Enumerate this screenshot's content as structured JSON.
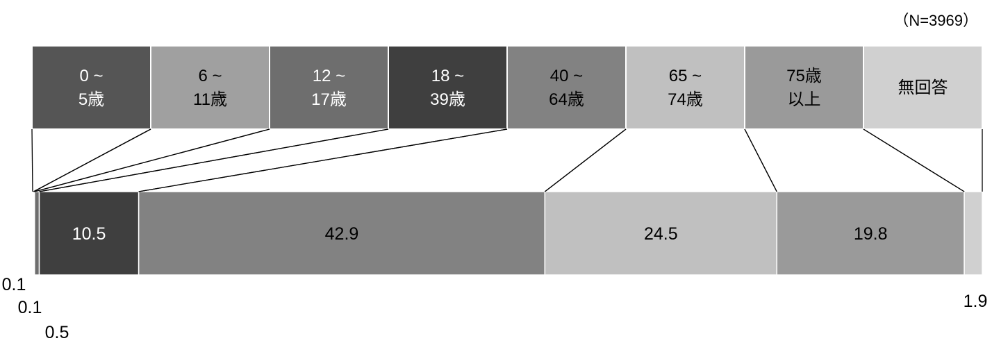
{
  "sample_size": "（N=3969）",
  "chart_data": {
    "type": "stacked-bar",
    "title": "",
    "categories": [
      {
        "lines": [
          "0 ~",
          "5歳"
        ],
        "color": "#555555",
        "text_color": "#ffffff"
      },
      {
        "lines": [
          "6 ~",
          "11歳"
        ],
        "color": "#a0a0a0",
        "text_color": "#000000"
      },
      {
        "lines": [
          "12 ~",
          "17歳"
        ],
        "color": "#6e6e6e",
        "text_color": "#ffffff"
      },
      {
        "lines": [
          "18 ~",
          "39歳"
        ],
        "color": "#3f3f3f",
        "text_color": "#ffffff"
      },
      {
        "lines": [
          "40 ~",
          "64歳"
        ],
        "color": "#828282",
        "text_color": "#000000"
      },
      {
        "lines": [
          "65 ~",
          "74歳"
        ],
        "color": "#c0c0c0",
        "text_color": "#000000"
      },
      {
        "lines": [
          "75歳",
          "以上"
        ],
        "color": "#9a9a9a",
        "text_color": "#000000"
      },
      {
        "lines": [
          "無回答"
        ],
        "color": "#d0d0d0",
        "text_color": "#000000"
      }
    ],
    "values": [
      0.1,
      0.1,
      0.5,
      10.5,
      42.9,
      24.5,
      19.8,
      1.9
    ],
    "value_labels": [
      "0.1",
      "0.1",
      "0.5",
      "10.5",
      "42.9",
      "24.5",
      "19.8",
      "1.9"
    ],
    "unit": "%"
  }
}
